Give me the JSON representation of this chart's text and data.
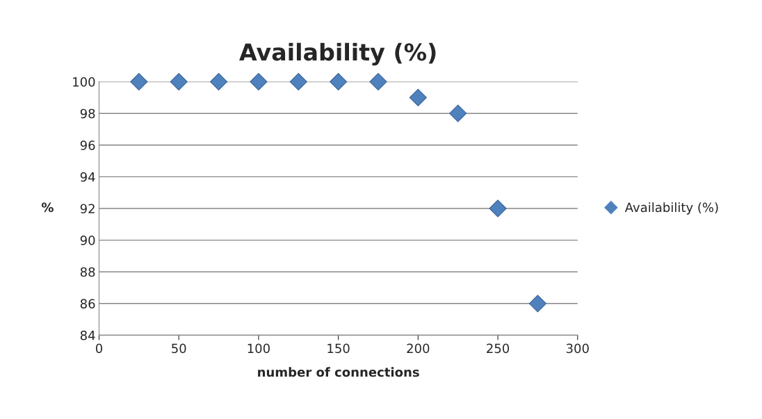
{
  "chart_data": {
    "type": "scatter",
    "title": "Availability (%)",
    "xlabel": "number of connections",
    "ylabel": "%",
    "x": [
      25,
      50,
      75,
      100,
      125,
      150,
      175,
      200,
      225,
      250,
      275
    ],
    "series": [
      {
        "name": "Availability (%)",
        "color": "#4f81bd",
        "values": [
          100,
          100,
          100,
          100,
          100,
          100,
          100,
          99,
          98,
          92,
          86
        ]
      }
    ],
    "xlim": [
      0,
      300
    ],
    "xticks": [
      0,
      50,
      100,
      150,
      200,
      250,
      300
    ],
    "ylim": [
      84,
      100
    ],
    "yticks": [
      84,
      86,
      88,
      90,
      92,
      94,
      96,
      98,
      100
    ],
    "grid": "y",
    "legend": "right",
    "marker": "diamond"
  }
}
